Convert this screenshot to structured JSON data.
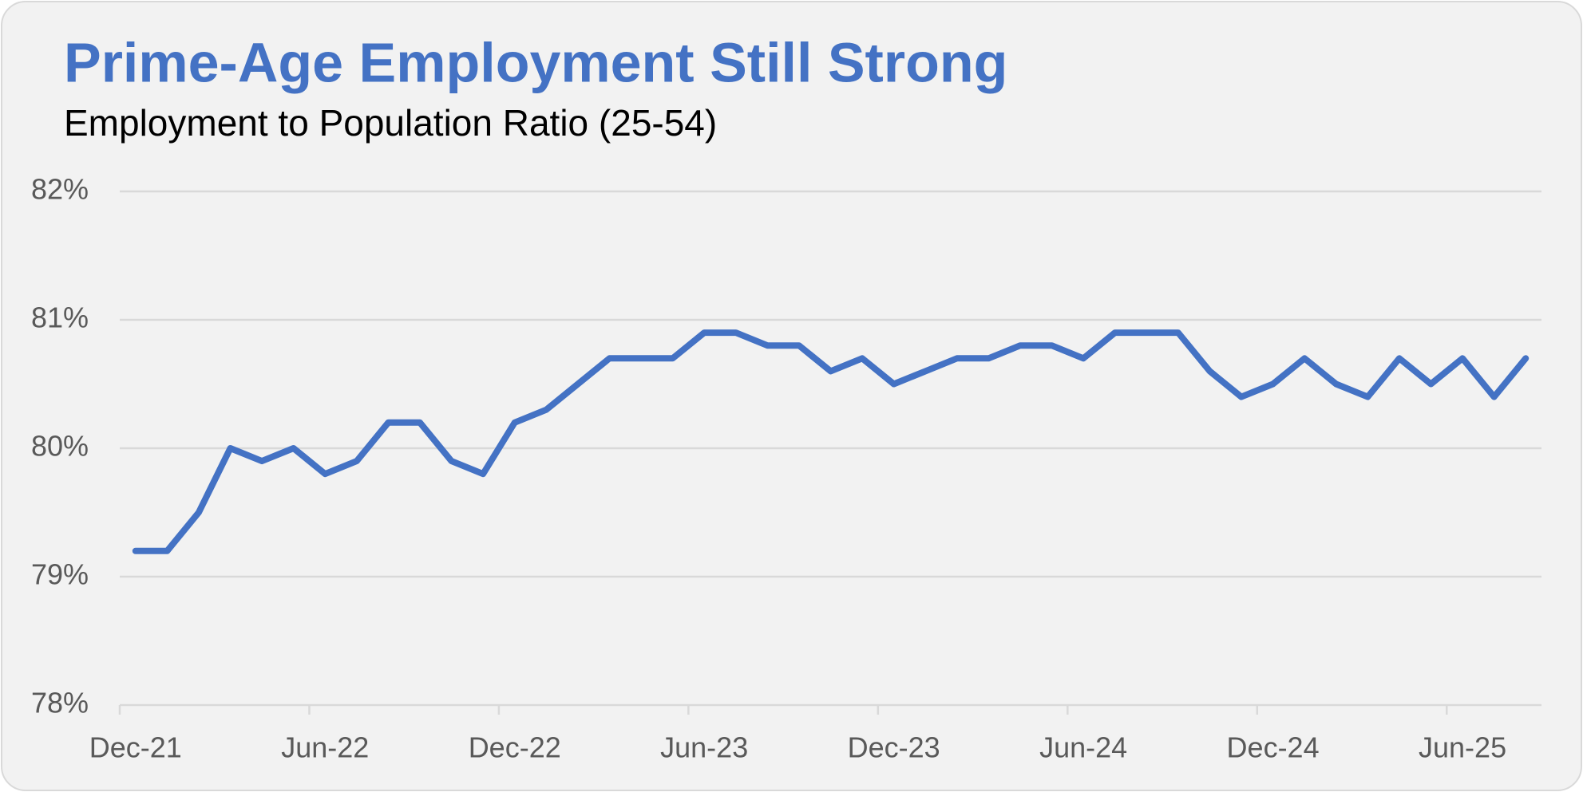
{
  "chart_data": {
    "type": "line",
    "title": "Prime-Age Employment Still Strong",
    "subtitle": "Employment to Population Ratio (25-54)",
    "categories": [
      "Dec-21",
      null,
      null,
      null,
      null,
      null,
      "Jun-22",
      null,
      null,
      null,
      null,
      null,
      "Dec-22",
      null,
      null,
      null,
      null,
      null,
      "Jun-23",
      null,
      null,
      null,
      null,
      null,
      "Dec-23",
      null,
      null,
      null,
      null,
      null,
      "Jun-24",
      null,
      null,
      null,
      null,
      null,
      "Dec-24",
      null,
      null,
      null,
      null,
      null,
      "Jun-25",
      null,
      null
    ],
    "series": [
      {
        "name": "Employment to Population Ratio (25-54)",
        "color": "#4472c4",
        "values": [
          79.2,
          79.2,
          79.5,
          80.0,
          79.9,
          80.0,
          79.8,
          79.9,
          80.2,
          80.2,
          79.9,
          79.8,
          80.2,
          80.3,
          80.5,
          80.7,
          80.7,
          80.7,
          80.9,
          80.9,
          80.8,
          80.8,
          80.6,
          80.7,
          80.5,
          80.6,
          80.7,
          80.7,
          80.8,
          80.8,
          80.7,
          80.9,
          80.9,
          80.9,
          80.6,
          80.4,
          80.5,
          80.7,
          80.5,
          80.4,
          80.7,
          80.5,
          80.7,
          80.4,
          80.7
        ]
      }
    ],
    "ylim": [
      78,
      82
    ],
    "yticks": [
      {
        "value": 78,
        "label": "78%"
      },
      {
        "value": 79,
        "label": "79%"
      },
      {
        "value": 80,
        "label": "80%"
      },
      {
        "value": 81,
        "label": "81%"
      },
      {
        "value": 82,
        "label": "82%"
      }
    ],
    "grid": true
  }
}
